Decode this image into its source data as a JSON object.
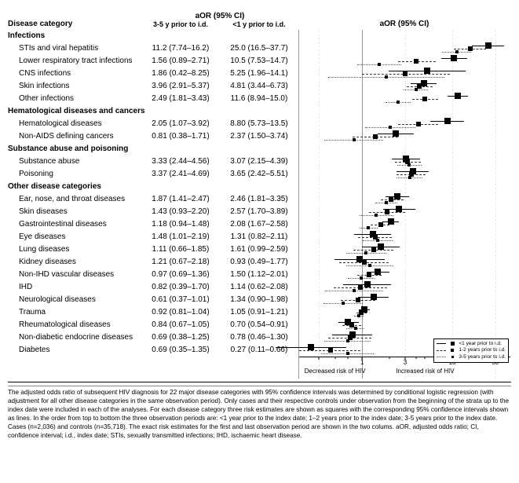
{
  "headers": {
    "disease_category": "Disease category",
    "aor_ci": "aOR (95% CI)",
    "period_3_5": "3-5 y prior to i.d.",
    "period_lt1": "<1 y prior to i.d."
  },
  "axis": {
    "decreased": "Decreased risk of HIV",
    "increased": "Increased risk of HIV",
    "ticks": [
      0.33,
      1,
      3,
      10,
      30
    ],
    "tick_labels": [
      "",
      "1",
      "3",
      "10",
      "30"
    ],
    "min": 0.2,
    "max": 45
  },
  "legend": {
    "lt1": "<1 year prior to i.d.",
    "y12": "1-2 years prior to i.d.",
    "y35": "3-5 years prior to i.d."
  },
  "groups": [
    {
      "title": "Infections",
      "rows": [
        {
          "name": "STIs and viral hepatitis",
          "v35": "11.2 (7.74–16.2)",
          "vlt1": "25.0 (16.5–37.7)",
          "a": {
            "or": 11.2,
            "lo": 7.74,
            "hi": 16.2
          },
          "b": {
            "or": 16.0,
            "lo": 10.5,
            "hi": 23.5
          },
          "c": {
            "or": 25.0,
            "lo": 16.5,
            "hi": 37.7
          }
        },
        {
          "name": "Lower respiratory tract infections",
          "v35": "1.56 (0.89–2.71)",
          "vlt1": "10.5 (7.53–14.7)",
          "a": {
            "or": 1.56,
            "lo": 0.89,
            "hi": 2.71
          },
          "b": {
            "or": 4.0,
            "lo": 2.5,
            "hi": 6.5
          },
          "c": {
            "or": 10.5,
            "lo": 7.53,
            "hi": 14.7
          }
        },
        {
          "name": "CNS infections",
          "v35": "1.86 (0.42–8.25)",
          "vlt1": "5.25 (1.96–14.1)",
          "a": {
            "or": 1.86,
            "lo": 0.42,
            "hi": 8.25
          },
          "b": {
            "or": 3.0,
            "lo": 1.0,
            "hi": 9.5
          },
          "c": {
            "or": 5.25,
            "lo": 1.96,
            "hi": 14.1
          }
        },
        {
          "name": "Skin infections",
          "v35": "3.96 (2.91–5.37)",
          "vlt1": "4.81 (3.44–6.73)",
          "a": {
            "or": 3.96,
            "lo": 2.91,
            "hi": 5.37
          },
          "b": {
            "or": 4.3,
            "lo": 3.1,
            "hi": 6.0
          },
          "c": {
            "or": 4.81,
            "lo": 3.44,
            "hi": 6.73
          }
        },
        {
          "name": "Other infections",
          "v35": "2.49 (1.81–3.43)",
          "vlt1": "11.6 (8.94–15.0)",
          "a": {
            "or": 2.49,
            "lo": 1.81,
            "hi": 3.43
          },
          "b": {
            "or": 5.0,
            "lo": 3.6,
            "hi": 7.0
          },
          "c": {
            "or": 11.6,
            "lo": 8.94,
            "hi": 15.0
          }
        }
      ]
    },
    {
      "title": "Hematological diseases and cancers",
      "rows": [
        {
          "name": "Hematological diseases",
          "v35": "2.05 (1.07–3.92)",
          "vlt1": "8.80 (5.73–13.5)",
          "a": {
            "or": 2.05,
            "lo": 1.07,
            "hi": 3.92
          },
          "b": {
            "or": 4.2,
            "lo": 2.5,
            "hi": 7.0
          },
          "c": {
            "or": 8.8,
            "lo": 5.73,
            "hi": 13.5
          }
        },
        {
          "name": "Non-AIDS defining cancers",
          "v35": "0.81 (0.38–1.71)",
          "vlt1": "2.37 (1.50–3.74)",
          "a": {
            "or": 0.81,
            "lo": 0.38,
            "hi": 1.71
          },
          "b": {
            "or": 1.4,
            "lo": 0.78,
            "hi": 2.5
          },
          "c": {
            "or": 2.37,
            "lo": 1.5,
            "hi": 3.74
          }
        }
      ]
    },
    {
      "title": "Substance abuse and poisoning",
      "rows": [
        {
          "name": "Substance abuse",
          "v35": "3.33 (2.44–4.56)",
          "vlt1": "3.07 (2.15–4.39)",
          "a": {
            "or": 3.33,
            "lo": 2.44,
            "hi": 4.56
          },
          "b": {
            "or": 3.2,
            "lo": 2.3,
            "hi": 4.5
          },
          "c": {
            "or": 3.07,
            "lo": 2.15,
            "hi": 4.39
          }
        },
        {
          "name": "Poisoning",
          "v35": "3.37 (2.41–4.69)",
          "vlt1": "3.65 (2.42–5.51)",
          "a": {
            "or": 3.37,
            "lo": 2.41,
            "hi": 4.69
          },
          "b": {
            "or": 3.5,
            "lo": 2.4,
            "hi": 5.1
          },
          "c": {
            "or": 3.65,
            "lo": 2.42,
            "hi": 5.51
          }
        }
      ]
    },
    {
      "title": "Other disease categories",
      "rows": [
        {
          "name": "Ear, nose, and throat diseases",
          "v35": "1.87 (1.41–2.47)",
          "vlt1": "2.46 (1.81–3.35)",
          "a": {
            "or": 1.87,
            "lo": 1.41,
            "hi": 2.47
          },
          "b": {
            "or": 2.1,
            "lo": 1.6,
            "hi": 2.9
          },
          "c": {
            "or": 2.46,
            "lo": 1.81,
            "hi": 3.35
          }
        },
        {
          "name": "Skin diseases",
          "v35": "1.43 (0.93–2.20)",
          "vlt1": "2.57 (1.70–3.89)",
          "a": {
            "or": 1.43,
            "lo": 0.93,
            "hi": 2.2
          },
          "b": {
            "or": 1.9,
            "lo": 1.2,
            "hi": 3.0
          },
          "c": {
            "or": 2.57,
            "lo": 1.7,
            "hi": 3.89
          }
        },
        {
          "name": "Gastrointestinal diseases",
          "v35": "1.18 (0.94–1.48)",
          "vlt1": "2.08 (1.67–2.58)",
          "a": {
            "or": 1.18,
            "lo": 0.94,
            "hi": 1.48
          },
          "b": {
            "or": 1.6,
            "lo": 1.25,
            "hi": 2.0
          },
          "c": {
            "or": 2.08,
            "lo": 1.67,
            "hi": 2.58
          }
        },
        {
          "name": "Eye diseases",
          "v35": "1.48 (1.01–2.19)",
          "vlt1": "1.31 (0.82–2.11)",
          "a": {
            "or": 1.48,
            "lo": 1.01,
            "hi": 2.19
          },
          "b": {
            "or": 1.4,
            "lo": 0.9,
            "hi": 2.15
          },
          "c": {
            "or": 1.31,
            "lo": 0.82,
            "hi": 2.11
          }
        },
        {
          "name": "Lung diseases",
          "v35": "1.11 (0.66–1.85)",
          "vlt1": "1.61 (0.99–2.59)",
          "a": {
            "or": 1.11,
            "lo": 0.66,
            "hi": 1.85
          },
          "b": {
            "or": 1.35,
            "lo": 0.8,
            "hi": 2.2
          },
          "c": {
            "or": 1.61,
            "lo": 0.99,
            "hi": 2.59
          }
        },
        {
          "name": "Kidney diseases",
          "v35": "1.21 (0.67–2.18)",
          "vlt1": "0.93 (0.49–1.77)",
          "a": {
            "or": 1.21,
            "lo": 0.67,
            "hi": 2.18
          },
          "b": {
            "or": 1.05,
            "lo": 0.56,
            "hi": 1.95
          },
          "c": {
            "or": 0.93,
            "lo": 0.49,
            "hi": 1.77
          }
        },
        {
          "name": "Non-IHD vascular diseases",
          "v35": "0.97 (0.69–1.36)",
          "vlt1": "1.50 (1.12–2.01)",
          "a": {
            "or": 0.97,
            "lo": 0.69,
            "hi": 1.36
          },
          "b": {
            "or": 1.2,
            "lo": 0.88,
            "hi": 1.65
          },
          "c": {
            "or": 1.5,
            "lo": 1.12,
            "hi": 2.01
          }
        },
        {
          "name": "IHD",
          "v35": "0.82 (0.39–1.70)",
          "vlt1": "1.14 (0.62–2.08)",
          "a": {
            "or": 0.82,
            "lo": 0.39,
            "hi": 1.7
          },
          "b": {
            "or": 0.95,
            "lo": 0.48,
            "hi": 1.88
          },
          "c": {
            "or": 1.14,
            "lo": 0.62,
            "hi": 2.08
          }
        },
        {
          "name": "Neurological diseases",
          "v35": "0.61 (0.37–1.01)",
          "vlt1": "1.34 (0.90–1.98)",
          "a": {
            "or": 0.61,
            "lo": 0.37,
            "hi": 1.01
          },
          "b": {
            "or": 0.9,
            "lo": 0.58,
            "hi": 1.4
          },
          "c": {
            "or": 1.34,
            "lo": 0.9,
            "hi": 1.98
          }
        },
        {
          "name": "Trauma",
          "v35": "0.92 (0.81–1.04)",
          "vlt1": "1.05 (0.91–1.21)",
          "a": {
            "or": 0.92,
            "lo": 0.81,
            "hi": 1.04
          },
          "b": {
            "or": 0.98,
            "lo": 0.86,
            "hi": 1.12
          },
          "c": {
            "or": 1.05,
            "lo": 0.91,
            "hi": 1.21
          }
        },
        {
          "name": "Rheumatological diseases",
          "v35": "0.84 (0.67–1.05)",
          "vlt1": "0.70 (0.54–0.91)",
          "a": {
            "or": 0.84,
            "lo": 0.67,
            "hi": 1.05
          },
          "b": {
            "or": 0.77,
            "lo": 0.6,
            "hi": 0.98
          },
          "c": {
            "or": 0.7,
            "lo": 0.54,
            "hi": 0.91
          }
        },
        {
          "name": "Non-diabetic endocrine diseases",
          "v35": "0.69 (0.38–1.25)",
          "vlt1": "0.78 (0.46–1.30)",
          "a": {
            "or": 0.69,
            "lo": 0.38,
            "hi": 1.25
          },
          "b": {
            "or": 0.73,
            "lo": 0.42,
            "hi": 1.27
          },
          "c": {
            "or": 0.78,
            "lo": 0.46,
            "hi": 1.3
          }
        },
        {
          "name": "Diabetes",
          "v35": "0.69 (0.35–1.35)",
          "vlt1": "0.27 (0.11–0.66)",
          "a": {
            "or": 0.69,
            "lo": 0.35,
            "hi": 1.35
          },
          "b": {
            "or": 0.45,
            "lo": 0.2,
            "hi": 0.95
          },
          "c": {
            "or": 0.27,
            "lo": 0.11,
            "hi": 0.66
          }
        }
      ]
    }
  ],
  "caption": "The adjusted odds ratio of subsequent HIV diagnosis for 22 major disease categories with 95% confidence intervals was determined by conditional logistic regression (with adjustment for all other disease categories in the same observation period). Only cases and their respective controls under observation from the beginning of the strata up to the index date were included in each of the analyses. For each disease category three risk estimates are shown as squares with the corresponding 95% confidence intervals shown as lines. In the order from top to bottom the three observation periods are: <1 year prior to the index date; 1–2 years prior to the index date; 3-5 years prior to the index date. Cases (n=2,036) and controls (n=35,718). The exact risk estimates for the first and last observation period are shown in the two colums. aOR, adjusted odds ratio; CI, confidence interval; i.d., index date; STIs, sexually transmitted infections; IHD, ischaemic heart disease."
}
